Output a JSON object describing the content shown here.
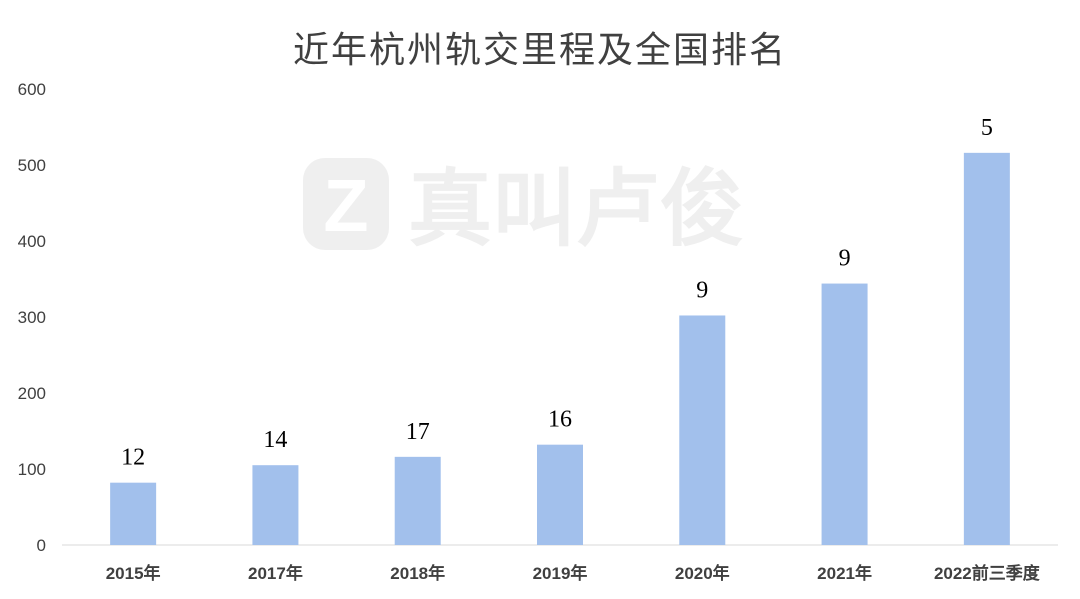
{
  "chart_data": {
    "type": "bar",
    "title": "近年杭州轨交里程及全国排名",
    "categories": [
      "2015年",
      "2017年",
      "2018年",
      "2019年",
      "2020年",
      "2021年",
      "2022前三季度"
    ],
    "values": [
      82,
      105,
      116,
      132,
      302,
      344,
      516
    ],
    "rank_labels": [
      "12",
      "14",
      "17",
      "16",
      "9",
      "9",
      "5"
    ],
    "ylim": [
      0,
      600
    ],
    "yticks": [
      0,
      100,
      200,
      300,
      400,
      500,
      600
    ],
    "xlabel": "",
    "ylabel": "",
    "grid": false,
    "bar_color": "#a2c0ec"
  },
  "watermark": {
    "text": "真叫卢俊",
    "logo_letter": "Z"
  }
}
